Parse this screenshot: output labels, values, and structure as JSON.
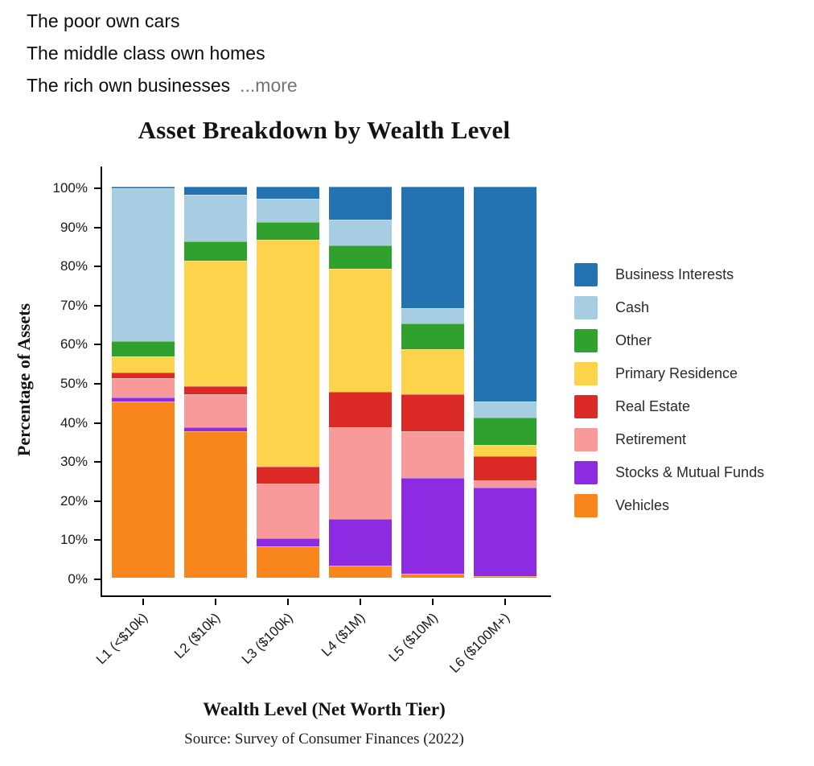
{
  "post": {
    "line1": "The poor own cars",
    "line2": "The middle class own homes",
    "line3": "The rich own businesses",
    "more_label": "...more"
  },
  "chart_data": {
    "type": "bar",
    "stacked": true,
    "title": "Asset Breakdown by Wealth Level",
    "xlabel": "Wealth Level (Net Worth Tier)",
    "ylabel": "Percentage of Assets",
    "source": "Source: Survey of Consumer Finances (2022)",
    "ylim": [
      0,
      100
    ],
    "grid": false,
    "legend_position": "right",
    "ytick_labels": [
      "0%",
      "10%",
      "20%",
      "30%",
      "40%",
      "50%",
      "60%",
      "70%",
      "80%",
      "90%",
      "100%"
    ],
    "categories": [
      "L1 (<$10k)",
      "L2 ($10k)",
      "L3 ($100k)",
      "L4 ($1M)",
      "L5 ($10M)",
      "L6 ($100M+)"
    ],
    "stack_order": "series listed bottom-to-top",
    "series": [
      {
        "name": "Vehicles",
        "color": "#F8861D",
        "values": [
          45,
          37.5,
          8,
          3,
          1,
          0.5
        ]
      },
      {
        "name": "Stocks & Mutual Funds",
        "color": "#8D2BE2",
        "values": [
          1,
          1,
          2,
          12,
          24.5,
          22.5
        ]
      },
      {
        "name": "Retirement",
        "color": "#F8999A",
        "values": [
          5,
          8.5,
          14,
          23.5,
          12,
          2
        ]
      },
      {
        "name": "Real Estate",
        "color": "#DB2A26",
        "values": [
          1.5,
          2,
          4.5,
          9,
          9.5,
          6
        ]
      },
      {
        "name": "Primary Residence",
        "color": "#FCD34B",
        "values": [
          4,
          32,
          58,
          31.5,
          11.5,
          3
        ]
      },
      {
        "name": "Other",
        "color": "#30A12E",
        "values": [
          4,
          5,
          4.5,
          6,
          6.5,
          7
        ]
      },
      {
        "name": "Cash",
        "color": "#A6CDE2",
        "values": [
          39,
          12,
          6,
          6.5,
          4,
          4
        ]
      },
      {
        "name": "Business Interests",
        "color": "#2372B2",
        "values": [
          0.5,
          2,
          3,
          8.5,
          31,
          55
        ]
      }
    ],
    "legend": [
      "Business Interests",
      "Cash",
      "Other",
      "Primary Residence",
      "Real Estate",
      "Retirement",
      "Stocks & Mutual Funds",
      "Vehicles"
    ]
  }
}
